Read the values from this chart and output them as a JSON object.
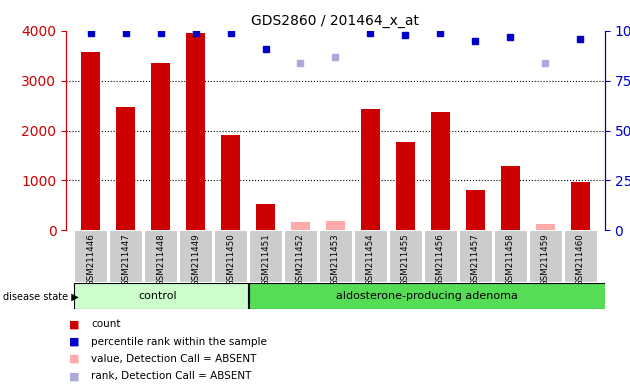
{
  "title": "GDS2860 / 201464_x_at",
  "samples": [
    "GSM211446",
    "GSM211447",
    "GSM211448",
    "GSM211449",
    "GSM211450",
    "GSM211451",
    "GSM211452",
    "GSM211453",
    "GSM211454",
    "GSM211455",
    "GSM211456",
    "GSM211457",
    "GSM211458",
    "GSM211459",
    "GSM211460"
  ],
  "counts": [
    3580,
    2480,
    3350,
    3950,
    1920,
    520,
    null,
    null,
    2430,
    1780,
    2380,
    810,
    1300,
    null,
    960
  ],
  "absent_values": [
    null,
    null,
    null,
    null,
    null,
    null,
    170,
    180,
    null,
    null,
    null,
    null,
    null,
    130,
    null
  ],
  "percentile_ranks": [
    99,
    99,
    99,
    99,
    99,
    91,
    null,
    null,
    99,
    98,
    99,
    95,
    97,
    null,
    96
  ],
  "absent_ranks": [
    null,
    null,
    null,
    null,
    null,
    null,
    84,
    87,
    null,
    null,
    null,
    null,
    null,
    84,
    null
  ],
  "ylim_left": [
    0,
    4000
  ],
  "ylim_right": [
    0,
    100
  ],
  "bar_color": "#cc0000",
  "absent_bar_color": "#ffaaaa",
  "rank_color": "#0000cc",
  "absent_rank_color": "#aaaadd",
  "control_bg": "#ccffcc",
  "disease_bg": "#55dd55",
  "xticklabel_bg": "#cccccc",
  "legend_count_color": "#cc0000",
  "legend_rank_color": "#0000cc",
  "legend_absent_val_color": "#ffaaaa",
  "legend_absent_rank_color": "#aaaadd"
}
